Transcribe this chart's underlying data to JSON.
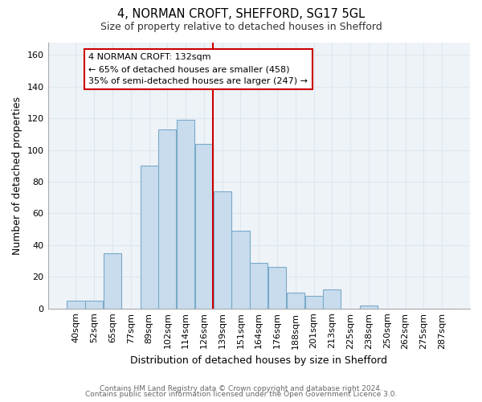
{
  "title": "4, NORMAN CROFT, SHEFFORD, SG17 5GL",
  "subtitle": "Size of property relative to detached houses in Shefford",
  "xlabel": "Distribution of detached houses by size in Shefford",
  "ylabel": "Number of detached properties",
  "bar_color": "#c8dcee",
  "bar_edge_color": "#7aaac8",
  "categories": [
    "40sqm",
    "52sqm",
    "65sqm",
    "77sqm",
    "89sqm",
    "102sqm",
    "114sqm",
    "126sqm",
    "139sqm",
    "151sqm",
    "164sqm",
    "176sqm",
    "188sqm",
    "201sqm",
    "213sqm",
    "225sqm",
    "238sqm",
    "250sqm",
    "262sqm",
    "275sqm",
    "287sqm"
  ],
  "values": [
    5,
    5,
    35,
    0,
    90,
    113,
    119,
    104,
    74,
    49,
    29,
    26,
    10,
    8,
    12,
    0,
    2,
    0,
    0,
    0,
    0
  ],
  "vline_color": "#cc0000",
  "annotation_line1": "4 NORMAN CROFT: 132sqm",
  "annotation_line2": "← 65% of detached houses are smaller (458)",
  "annotation_line3": "35% of semi-detached houses are larger (247) →",
  "annotation_box_color": "#ffffff",
  "annotation_box_edgecolor": "#cc0000",
  "ylim": [
    0,
    168
  ],
  "yticks": [
    0,
    20,
    40,
    60,
    80,
    100,
    120,
    140,
    160
  ],
  "footer1": "Contains HM Land Registry data © Crown copyright and database right 2024.",
  "footer2": "Contains public sector information licensed under the Open Government Licence 3.0.",
  "grid_color": "#dde6f0",
  "background_color": "#eef3f8"
}
